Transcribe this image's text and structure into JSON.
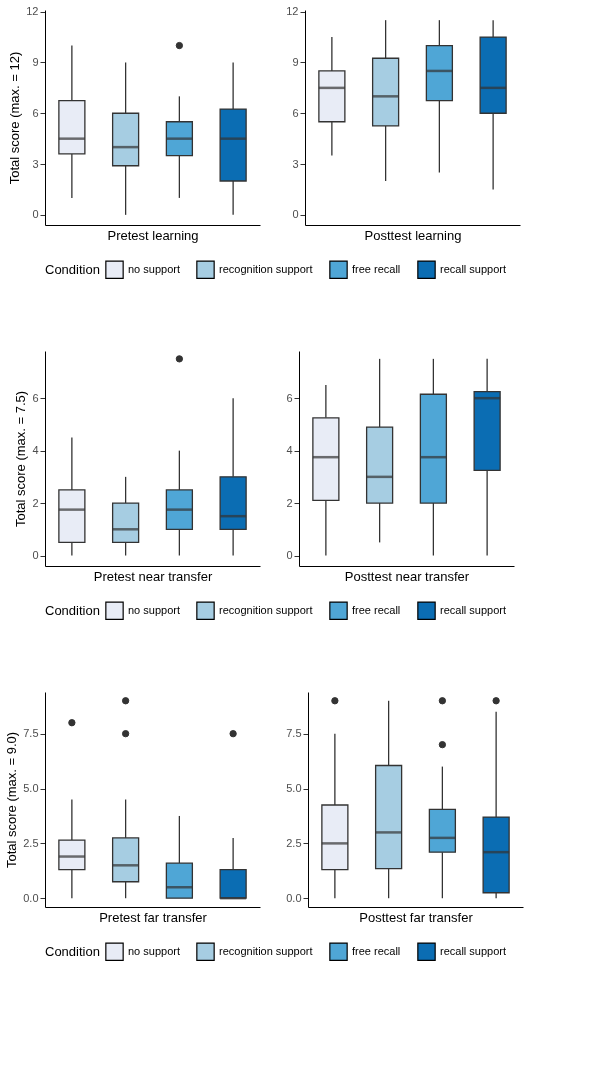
{
  "chart_data": [
    {
      "type": "box",
      "xlabel": "Pretest learning",
      "ylabel": "Total score (max. = 12)",
      "categories": [
        null,
        null,
        null,
        null
      ],
      "ylim": [
        -0.6,
        12.1
      ],
      "yticks": [
        0,
        3,
        6,
        9,
        12
      ],
      "legend": "bottom",
      "legend_title": "Condition",
      "series": [
        {
          "name": "no support",
          "color": "#e8ecf6",
          "boxes": [
            {
              "low": 1,
              "q1": 3.6,
              "median": 4.5,
              "q3": 6.75,
              "high": 10
            },
            null,
            null,
            null
          ]
        },
        {
          "name": "recognition support",
          "color": "#a6cde2",
          "boxes": [
            null,
            {
              "low": 0,
              "q1": 2.9,
              "median": 4,
              "q3": 6,
              "high": 9
            },
            null,
            null
          ]
        },
        {
          "name": "free recall",
          "color": "#4fa6d6",
          "boxes": [
            null,
            null,
            {
              "low": 1,
              "q1": 3.5,
              "median": 4.5,
              "q3": 5.5,
              "high": 7,
              "outliers": [
                10
              ]
            },
            null
          ]
        },
        {
          "name": "recall support",
          "color": "#0b6db3",
          "boxes": [
            null,
            null,
            null,
            {
              "low": 0,
              "q1": 2,
              "median": 4.5,
              "q3": 6.25,
              "high": 9
            }
          ]
        }
      ]
    },
    {
      "type": "box",
      "xlabel": "Posttest learning",
      "legend": "bottom",
      "categories": [
        null,
        null,
        null,
        null
      ],
      "ylim": [
        -0.6,
        12.1
      ],
      "yticks": [
        0,
        3,
        6,
        9,
        12
      ],
      "series": [
        {
          "name": "no support",
          "color": "#e8ecf6",
          "boxes": [
            {
              "low": 3.5,
              "q1": 5.5,
              "median": 7.5,
              "q3": 8.5,
              "high": 10.5
            },
            null,
            null,
            null
          ]
        },
        {
          "name": "recognition support",
          "color": "#a6cde2",
          "boxes": [
            null,
            {
              "low": 2,
              "q1": 5.25,
              "median": 7,
              "q3": 9.25,
              "high": 11.5
            },
            null,
            null
          ]
        },
        {
          "name": "free recall",
          "color": "#4fa6d6",
          "boxes": [
            null,
            null,
            {
              "low": 2.5,
              "q1": 6.75,
              "median": 8.5,
              "q3": 10,
              "high": 11.5
            },
            null
          ]
        },
        {
          "name": "recall support",
          "color": "#0b6db3",
          "boxes": [
            null,
            null,
            null,
            {
              "low": 1.5,
              "q1": 6,
              "median": 7.5,
              "q3": 10.5,
              "high": 11.5
            }
          ]
        }
      ]
    },
    {
      "type": "box",
      "xlabel": "Pretest near transfer",
      "ylabel": "Total score (max. = 7.5)",
      "categories": [
        null,
        null,
        null,
        null
      ],
      "ylim": [
        -0.4,
        7.8
      ],
      "yticks": [
        0,
        2,
        4,
        6
      ],
      "legend": "bottom",
      "legend_title": "Condition",
      "series": [
        {
          "name": "no support",
          "color": "#e8ecf6",
          "boxes": [
            {
              "low": 0,
              "q1": 0.5,
              "median": 1.75,
              "q3": 2.5,
              "high": 4.5
            },
            null,
            null,
            null
          ]
        },
        {
          "name": "recognition support",
          "color": "#a6cde2",
          "boxes": [
            null,
            {
              "low": 0,
              "q1": 0.5,
              "median": 1,
              "q3": 2,
              "high": 3
            },
            null,
            null
          ]
        },
        {
          "name": "free recall",
          "color": "#4fa6d6",
          "boxes": [
            null,
            null,
            {
              "low": 0,
              "q1": 1,
              "median": 1.75,
              "q3": 2.5,
              "high": 4,
              "outliers": [
                7.5
              ]
            },
            null
          ]
        },
        {
          "name": "recall support",
          "color": "#0b6db3",
          "boxes": [
            null,
            null,
            null,
            {
              "low": 0,
              "q1": 1,
              "median": 1.5,
              "q3": 3,
              "high": 6
            }
          ]
        }
      ]
    },
    {
      "type": "box",
      "xlabel": "Posttest near transfer",
      "legend": "bottom",
      "categories": [
        null,
        null,
        null,
        null
      ],
      "ylim": [
        -0.4,
        7.8
      ],
      "yticks": [
        0,
        2,
        4,
        6
      ],
      "series": [
        {
          "name": "no support",
          "color": "#e8ecf6",
          "boxes": [
            {
              "low": 0,
              "q1": 2.1,
              "median": 3.75,
              "q3": 5.25,
              "high": 6.5
            },
            null,
            null,
            null
          ]
        },
        {
          "name": "recognition support",
          "color": "#a6cde2",
          "boxes": [
            null,
            {
              "low": 0.5,
              "q1": 2,
              "median": 3,
              "q3": 4.9,
              "high": 7.5
            },
            null,
            null
          ]
        },
        {
          "name": "free recall",
          "color": "#4fa6d6",
          "boxes": [
            null,
            null,
            {
              "low": 0,
              "q1": 2,
              "median": 3.75,
              "q3": 6.15,
              "high": 7.5
            },
            null
          ]
        },
        {
          "name": "recall support",
          "color": "#0b6db3",
          "boxes": [
            null,
            null,
            null,
            {
              "low": 0,
              "q1": 3.25,
              "median": 6,
              "q3": 6.25,
              "high": 7.5
            }
          ]
        }
      ]
    },
    {
      "type": "box",
      "xlabel": "Pretest far transfer",
      "ylabel": "Total score (max. = 9.0)",
      "categories": [
        null,
        null,
        null,
        null
      ],
      "ylim": [
        -0.4,
        9.4
      ],
      "yticks": [
        {
          "value": 0,
          "label": "0.0"
        },
        {
          "value": 2.5,
          "label": "2.5"
        },
        {
          "value": 5,
          "label": "5.0"
        },
        {
          "value": 7.5,
          "label": "7.5"
        }
      ],
      "legend": "bottom",
      "legend_title": "Condition",
      "series": [
        {
          "name": "no support",
          "color": "#e8ecf6",
          "boxes": [
            {
              "low": 0,
              "q1": 1.3,
              "median": 1.9,
              "q3": 2.65,
              "high": 4.5,
              "outliers": [
                8
              ]
            },
            null,
            null,
            null
          ]
        },
        {
          "name": "recognition support",
          "color": "#a6cde2",
          "boxes": [
            null,
            {
              "low": 0,
              "q1": 0.75,
              "median": 1.5,
              "q3": 2.75,
              "high": 4.5,
              "outliers": [
                7.5,
                9
              ]
            },
            null,
            null
          ]
        },
        {
          "name": "free recall",
          "color": "#4fa6d6",
          "boxes": [
            null,
            null,
            {
              "low": 0,
              "q1": 0,
              "median": 0.5,
              "q3": 1.6,
              "high": 3.75
            },
            null
          ]
        },
        {
          "name": "recall support",
          "color": "#0b6db3",
          "boxes": [
            null,
            null,
            null,
            {
              "low": 0,
              "q1": 0,
              "median": 0,
              "q3": 1.3,
              "high": 2.75,
              "outliers": [
                7.5
              ]
            }
          ]
        }
      ]
    },
    {
      "type": "box",
      "xlabel": "Posttest far transfer",
      "legend": "bottom",
      "categories": [
        null,
        null,
        null,
        null
      ],
      "ylim": [
        -0.4,
        9.4
      ],
      "yticks": [
        {
          "value": 0,
          "label": "0.0"
        },
        {
          "value": 2.5,
          "label": "2.5"
        },
        {
          "value": 5,
          "label": "5.0"
        },
        {
          "value": 7.5,
          "label": "7.5"
        }
      ],
      "series": [
        {
          "name": "no support",
          "color": "#e8ecf6",
          "boxes": [
            {
              "low": 0,
              "q1": 1.3,
              "median": 2.5,
              "q3": 4.25,
              "high": 7.5,
              "outliers": [
                9
              ]
            },
            null,
            null,
            null
          ]
        },
        {
          "name": "recognition support",
          "color": "#a6cde2",
          "boxes": [
            null,
            {
              "low": 0,
              "q1": 1.35,
              "median": 3,
              "q3": 6.05,
              "high": 9
            },
            null,
            null
          ]
        },
        {
          "name": "free recall",
          "color": "#4fa6d6",
          "boxes": [
            null,
            null,
            {
              "low": 0,
              "q1": 2.1,
              "median": 2.75,
              "q3": 4.05,
              "high": 6,
              "outliers": [
                7,
                9
              ]
            },
            null
          ]
        },
        {
          "name": "recall support",
          "color": "#0b6db3",
          "boxes": [
            null,
            null,
            null,
            {
              "low": 0,
              "q1": 0.25,
              "median": 2.1,
              "q3": 3.7,
              "high": 8.5,
              "outliers": [
                9
              ]
            }
          ]
        }
      ]
    }
  ]
}
